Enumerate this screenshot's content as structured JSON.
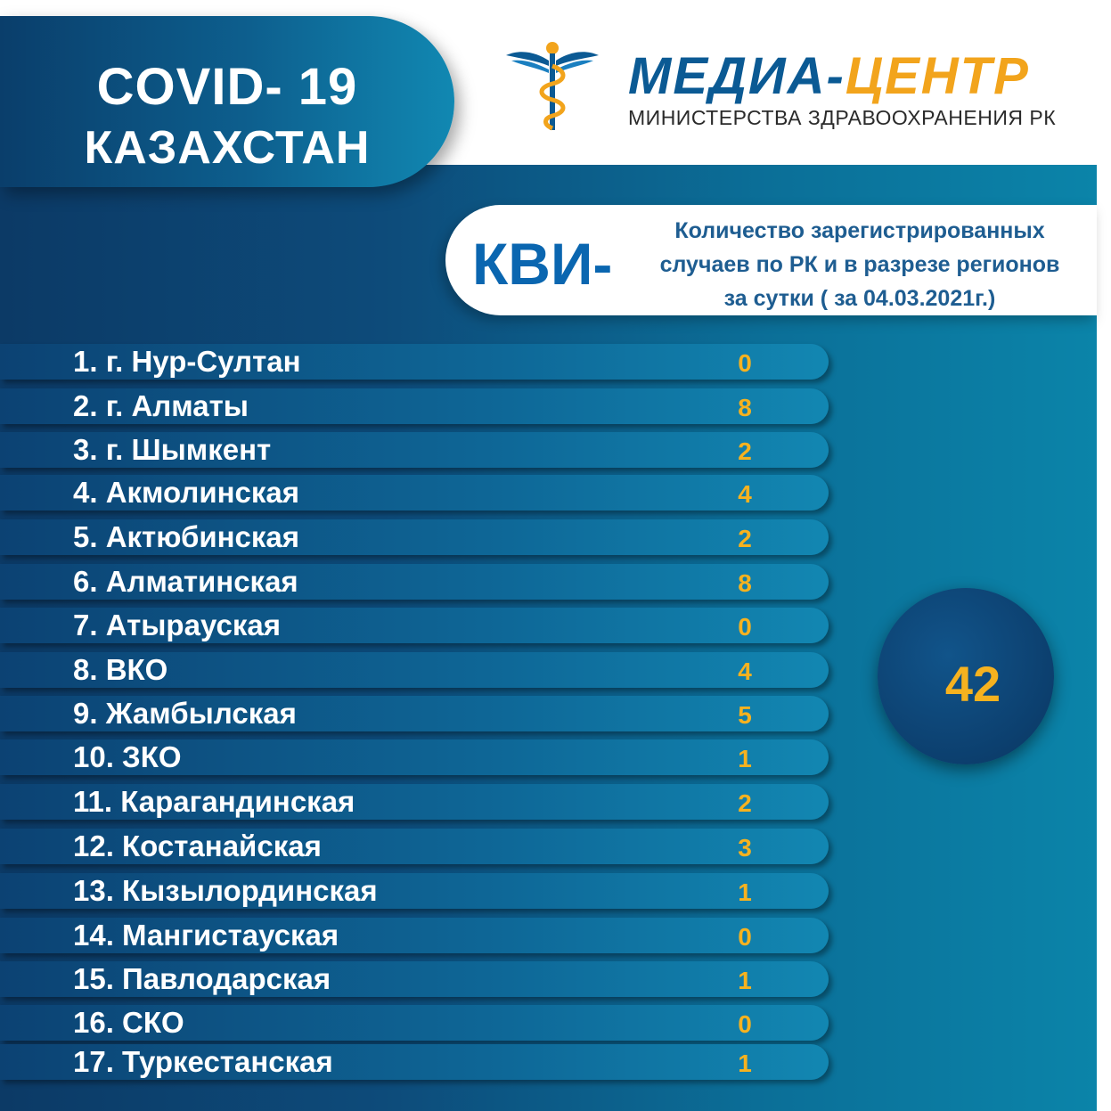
{
  "header": {
    "title_line1": "COVID- 19",
    "title_line2": "КАЗАХСТАН"
  },
  "logo": {
    "icon": "caduceus-icon",
    "name_part1": "МЕДИА-",
    "name_part2": "ЦЕНТР",
    "subtitle": "МИНИСТЕРСТВА ЗДРАВООХРАНЕНИЯ РК"
  },
  "kvi": {
    "label": "КВИ-",
    "description_line1": "Количество зарегистрированных",
    "description_line2": "случаев по РК и в разрезе регионов",
    "description_line3": "за сутки ( за 04.03.2021г.)"
  },
  "regions": [
    {
      "name": "1. г. Нур-Султан",
      "value": "0"
    },
    {
      "name": "2. г. Алматы",
      "value": "8"
    },
    {
      "name": "3. г. Шымкент",
      "value": "2"
    },
    {
      "name": "4. Акмолинская",
      "value": "4"
    },
    {
      "name": "5. Актюбинская",
      "value": "2"
    },
    {
      "name": "6. Алматинская",
      "value": "8"
    },
    {
      "name": "7. Атырауская",
      "value": "0"
    },
    {
      "name": "8. ВКО",
      "value": "4"
    },
    {
      "name": "9. Жамбылская",
      "value": "5"
    },
    {
      "name": "10. ЗКО",
      "value": "1"
    },
    {
      "name": "11. Карагандинская",
      "value": "2"
    },
    {
      "name": "12. Костанайская",
      "value": "3"
    },
    {
      "name": "13. Кызылординская",
      "value": "1"
    },
    {
      "name": "14. Мангистауская",
      "value": "0"
    },
    {
      "name": "15. Павлодарская",
      "value": "1"
    },
    {
      "name": "16. СКО",
      "value": "0"
    },
    {
      "name": "17. Туркестанская",
      "value": "1"
    }
  ],
  "total": "42",
  "colors": {
    "accent": "#f6b21f",
    "brand_blue": "#0b5a94",
    "brand_orange": "#f2a41c"
  }
}
